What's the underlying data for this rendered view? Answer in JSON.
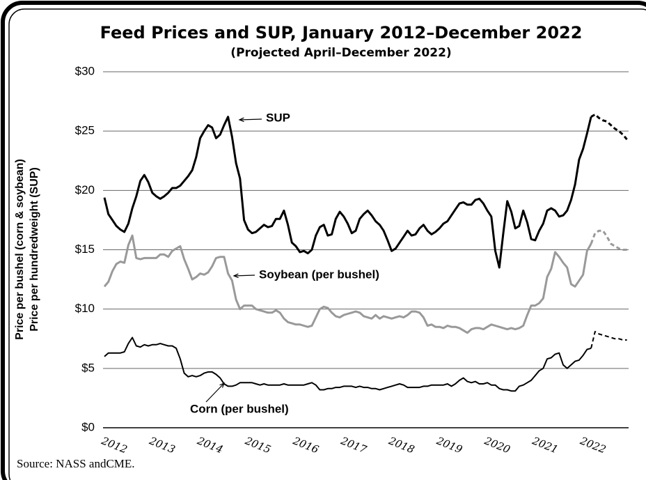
{
  "chart_data": {
    "type": "line",
    "title": "Feed Prices and SUP, January 2012–December 2022",
    "subtitle": "(Projected April–December 2022)",
    "y_label": [
      "Price per bushel (corn & soybean)",
      "Price per hundredweight (SUP)"
    ],
    "source": "Source: NASS andCME.",
    "grid": true,
    "ylim": [
      0,
      30
    ],
    "yticks": [
      {
        "value": 0,
        "label": "$0"
      },
      {
        "value": 5,
        "label": "$5"
      },
      {
        "value": 10,
        "label": "$10"
      },
      {
        "value": 15,
        "label": "$15"
      },
      {
        "value": 20,
        "label": "$20"
      },
      {
        "value": 25,
        "label": "$25"
      },
      {
        "value": 30,
        "label": "$30"
      }
    ],
    "categories": [
      "2012",
      null,
      null,
      null,
      null,
      null,
      null,
      null,
      null,
      null,
      null,
      null,
      "2013",
      null,
      null,
      null,
      null,
      null,
      null,
      null,
      null,
      null,
      null,
      null,
      "2014",
      null,
      null,
      null,
      null,
      null,
      null,
      null,
      null,
      null,
      null,
      null,
      "2015",
      null,
      null,
      null,
      null,
      null,
      null,
      null,
      null,
      null,
      null,
      null,
      "2016",
      null,
      null,
      null,
      null,
      null,
      null,
      null,
      null,
      null,
      null,
      null,
      "2017",
      null,
      null,
      null,
      null,
      null,
      null,
      null,
      null,
      null,
      null,
      null,
      "2018",
      null,
      null,
      null,
      null,
      null,
      null,
      null,
      null,
      null,
      null,
      null,
      "2019",
      null,
      null,
      null,
      null,
      null,
      null,
      null,
      null,
      null,
      null,
      null,
      "2020",
      null,
      null,
      null,
      null,
      null,
      null,
      null,
      null,
      null,
      null,
      null,
      "2021",
      null,
      null,
      null,
      null,
      null,
      null,
      null,
      null,
      null,
      null,
      null,
      "2022",
      null,
      null,
      null,
      null,
      null,
      null,
      null,
      null,
      null,
      null,
      null
    ],
    "series": [
      {
        "name": "SUP",
        "color": "#000000",
        "values": [
          19.4,
          18.0,
          17.5,
          17.0,
          16.7,
          16.5,
          17.2,
          18.5,
          19.5,
          20.8,
          21.3,
          20.7,
          19.8,
          19.5,
          19.3,
          19.5,
          19.8,
          20.2,
          20.2,
          20.4,
          20.8,
          21.2,
          21.7,
          22.8,
          24.4,
          25.0,
          25.5,
          25.3,
          24.4,
          24.7,
          25.5,
          26.2,
          24.5,
          22.3,
          21.0,
          17.5,
          16.7,
          16.4,
          16.5,
          16.8,
          17.1,
          16.9,
          17.0,
          17.6,
          17.6,
          18.3,
          17.1,
          15.6,
          15.3,
          14.8,
          14.9,
          14.7,
          15.0,
          16.2,
          16.9,
          17.1,
          16.2,
          16.3,
          17.6,
          18.2,
          17.8,
          17.2,
          16.4,
          16.6,
          17.6,
          18.0,
          18.3,
          17.9,
          17.4,
          17.1,
          16.6,
          15.8,
          14.9,
          15.1,
          15.6,
          16.1,
          16.6,
          16.2,
          16.3,
          16.8,
          17.1,
          16.6,
          16.3,
          16.5,
          16.8,
          17.2,
          17.4,
          17.9,
          18.4,
          18.9,
          19.0,
          18.8,
          18.8,
          19.2,
          19.3,
          18.9,
          18.3,
          17.8,
          14.9,
          13.5,
          16.4,
          19.1,
          18.2,
          16.8,
          17.0,
          18.3,
          17.3,
          15.9,
          15.8,
          16.6,
          17.2,
          18.3,
          18.5,
          18.3,
          17.8,
          17.9,
          18.3,
          19.2,
          20.5,
          22.6,
          23.5,
          24.8,
          26.2,
          null,
          null,
          null,
          null,
          null,
          null,
          null,
          null,
          null
        ],
        "projected": [
          null,
          null,
          null,
          null,
          null,
          null,
          null,
          null,
          null,
          null,
          null,
          null,
          null,
          null,
          null,
          null,
          null,
          null,
          null,
          null,
          null,
          null,
          null,
          null,
          null,
          null,
          null,
          null,
          null,
          null,
          null,
          null,
          null,
          null,
          null,
          null,
          null,
          null,
          null,
          null,
          null,
          null,
          null,
          null,
          null,
          null,
          null,
          null,
          null,
          null,
          null,
          null,
          null,
          null,
          null,
          null,
          null,
          null,
          null,
          null,
          null,
          null,
          null,
          null,
          null,
          null,
          null,
          null,
          null,
          null,
          null,
          null,
          null,
          null,
          null,
          null,
          null,
          null,
          null,
          null,
          null,
          null,
          null,
          null,
          null,
          null,
          null,
          null,
          null,
          null,
          null,
          null,
          null,
          null,
          null,
          null,
          null,
          null,
          null,
          null,
          null,
          null,
          null,
          null,
          null,
          null,
          null,
          null,
          null,
          null,
          null,
          null,
          null,
          null,
          null,
          null,
          null,
          null,
          null,
          null,
          null,
          null,
          26.2,
          26.4,
          26.1,
          25.9,
          25.8,
          25.5,
          25.2,
          25.0,
          24.7,
          24.3
        ]
      },
      {
        "name": "Soybean (per bushel)",
        "color": "#999999",
        "values": [
          11.9,
          12.3,
          13.2,
          13.8,
          14.0,
          13.9,
          15.4,
          16.2,
          14.3,
          14.2,
          14.3,
          14.3,
          14.3,
          14.3,
          14.6,
          14.6,
          14.4,
          14.9,
          15.1,
          15.3,
          14.2,
          13.4,
          12.5,
          12.7,
          13.0,
          12.9,
          13.1,
          13.6,
          14.3,
          14.4,
          14.4,
          13.0,
          12.4,
          10.8,
          10.0,
          10.3,
          10.3,
          10.3,
          10.0,
          9.9,
          9.8,
          9.7,
          9.7,
          9.9,
          9.7,
          9.2,
          8.9,
          8.8,
          8.7,
          8.7,
          8.6,
          8.5,
          8.6,
          9.3,
          10.0,
          10.2,
          10.1,
          9.7,
          9.4,
          9.3,
          9.5,
          9.6,
          9.7,
          9.8,
          9.7,
          9.4,
          9.3,
          9.2,
          9.5,
          9.2,
          9.4,
          9.3,
          9.2,
          9.3,
          9.4,
          9.3,
          9.5,
          9.8,
          9.8,
          9.7,
          9.3,
          8.6,
          8.7,
          8.5,
          8.5,
          8.4,
          8.6,
          8.5,
          8.5,
          8.4,
          8.2,
          8.0,
          8.3,
          8.4,
          8.4,
          8.3,
          8.5,
          8.7,
          8.6,
          8.5,
          8.4,
          8.3,
          8.4,
          8.3,
          8.4,
          8.6,
          9.5,
          10.3,
          10.3,
          10.5,
          10.9,
          12.7,
          13.4,
          14.8,
          14.4,
          13.9,
          13.5,
          12.1,
          11.9,
          12.4,
          12.9,
          14.9,
          15.5,
          null,
          null,
          null,
          null,
          null,
          null,
          null,
          null,
          null
        ],
        "projected": [
          null,
          null,
          null,
          null,
          null,
          null,
          null,
          null,
          null,
          null,
          null,
          null,
          null,
          null,
          null,
          null,
          null,
          null,
          null,
          null,
          null,
          null,
          null,
          null,
          null,
          null,
          null,
          null,
          null,
          null,
          null,
          null,
          null,
          null,
          null,
          null,
          null,
          null,
          null,
          null,
          null,
          null,
          null,
          null,
          null,
          null,
          null,
          null,
          null,
          null,
          null,
          null,
          null,
          null,
          null,
          null,
          null,
          null,
          null,
          null,
          null,
          null,
          null,
          null,
          null,
          null,
          null,
          null,
          null,
          null,
          null,
          null,
          null,
          null,
          null,
          null,
          null,
          null,
          null,
          null,
          null,
          null,
          null,
          null,
          null,
          null,
          null,
          null,
          null,
          null,
          null,
          null,
          null,
          null,
          null,
          null,
          null,
          null,
          null,
          null,
          null,
          null,
          null,
          null,
          null,
          null,
          null,
          null,
          null,
          null,
          null,
          null,
          null,
          null,
          null,
          null,
          null,
          null,
          null,
          null,
          null,
          null,
          15.5,
          16.4,
          16.6,
          16.6,
          16.1,
          15.5,
          15.3,
          15.1,
          15.0,
          15.0
        ]
      },
      {
        "name": "Corn (per bushel)",
        "color": "#000000",
        "values": [
          6.0,
          6.3,
          6.3,
          6.3,
          6.3,
          6.4,
          7.1,
          7.6,
          6.9,
          6.8,
          7.0,
          6.9,
          7.0,
          7.0,
          7.1,
          7.0,
          6.9,
          6.9,
          6.7,
          5.8,
          4.6,
          4.3,
          4.4,
          4.3,
          4.4,
          4.6,
          4.7,
          4.7,
          4.5,
          4.2,
          3.7,
          3.5,
          3.5,
          3.6,
          3.8,
          3.8,
          3.8,
          3.8,
          3.7,
          3.6,
          3.7,
          3.6,
          3.6,
          3.6,
          3.6,
          3.7,
          3.6,
          3.6,
          3.6,
          3.6,
          3.6,
          3.7,
          3.8,
          3.6,
          3.2,
          3.2,
          3.3,
          3.3,
          3.4,
          3.4,
          3.5,
          3.5,
          3.5,
          3.4,
          3.5,
          3.4,
          3.4,
          3.3,
          3.3,
          3.2,
          3.3,
          3.4,
          3.5,
          3.6,
          3.7,
          3.6,
          3.4,
          3.4,
          3.4,
          3.4,
          3.5,
          3.5,
          3.6,
          3.6,
          3.6,
          3.6,
          3.7,
          3.5,
          3.7,
          4.0,
          4.2,
          3.9,
          3.8,
          3.9,
          3.7,
          3.7,
          3.8,
          3.6,
          3.6,
          3.3,
          3.2,
          3.2,
          3.1,
          3.1,
          3.5,
          3.6,
          3.8,
          4.0,
          4.4,
          4.8,
          5.0,
          5.8,
          5.9,
          6.2,
          6.3,
          5.3,
          5.0,
          5.3,
          5.6,
          5.7,
          6.1,
          6.6,
          6.7,
          null,
          null,
          null,
          null,
          null,
          null,
          null,
          null,
          null
        ],
        "projected": [
          null,
          null,
          null,
          null,
          null,
          null,
          null,
          null,
          null,
          null,
          null,
          null,
          null,
          null,
          null,
          null,
          null,
          null,
          null,
          null,
          null,
          null,
          null,
          null,
          null,
          null,
          null,
          null,
          null,
          null,
          null,
          null,
          null,
          null,
          null,
          null,
          null,
          null,
          null,
          null,
          null,
          null,
          null,
          null,
          null,
          null,
          null,
          null,
          null,
          null,
          null,
          null,
          null,
          null,
          null,
          null,
          null,
          null,
          null,
          null,
          null,
          null,
          null,
          null,
          null,
          null,
          null,
          null,
          null,
          null,
          null,
          null,
          null,
          null,
          null,
          null,
          null,
          null,
          null,
          null,
          null,
          null,
          null,
          null,
          null,
          null,
          null,
          null,
          null,
          null,
          null,
          null,
          null,
          null,
          null,
          null,
          null,
          null,
          null,
          null,
          null,
          null,
          null,
          null,
          null,
          null,
          null,
          null,
          null,
          null,
          null,
          null,
          null,
          null,
          null,
          null,
          null,
          null,
          null,
          null,
          null,
          null,
          6.7,
          8.1,
          7.9,
          7.8,
          7.7,
          7.6,
          7.5,
          7.5,
          7.4,
          7.4
        ]
      }
    ]
  }
}
